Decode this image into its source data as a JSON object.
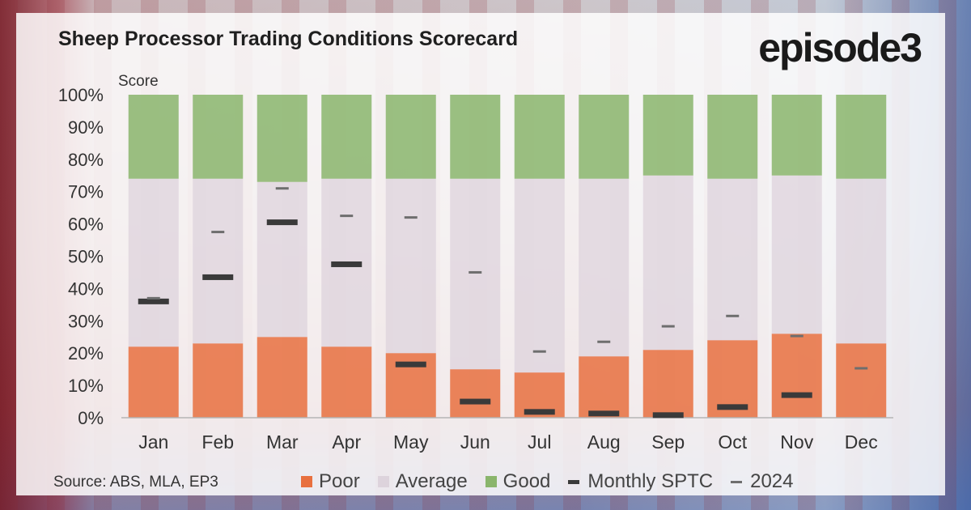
{
  "header": {
    "title": "Sheep Processor Trading Conditions Scorecard",
    "logo_text": "episode3"
  },
  "footer": {
    "source": "Source: ABS, MLA, EP3"
  },
  "colors": {
    "poor": "#e8703f",
    "average": "#ddd3dc",
    "good": "#8ab56c",
    "monthly": "#3a3a3a",
    "prior_year": "#6e6e6e"
  },
  "chart_data": {
    "type": "bar",
    "ylabel": "Score",
    "ylim": [
      0,
      100
    ],
    "yticks": [
      "0%",
      "10%",
      "20%",
      "30%",
      "40%",
      "50%",
      "60%",
      "70%",
      "80%",
      "90%",
      "100%"
    ],
    "categories": [
      "Jan",
      "Feb",
      "Mar",
      "Apr",
      "May",
      "Jun",
      "Jul",
      "Aug",
      "Sep",
      "Oct",
      "Nov",
      "Dec"
    ],
    "stacked_series": [
      {
        "name": "Poor",
        "values": [
          22,
          23,
          25,
          22,
          20,
          15,
          14,
          19,
          21,
          24,
          26,
          23
        ]
      },
      {
        "name": "Average",
        "values": [
          52,
          51,
          48,
          52,
          54,
          59,
          60,
          55,
          54,
          50,
          49,
          51
        ]
      },
      {
        "name": "Good",
        "values": [
          26,
          26,
          27,
          26,
          26,
          26,
          26,
          26,
          25,
          26,
          25,
          26
        ]
      }
    ],
    "marker_series": [
      {
        "name": "Monthly SPTC",
        "values": [
          36,
          43.5,
          60.5,
          47.5,
          16.5,
          5,
          1.8,
          1.3,
          0.8,
          3.3,
          7,
          null
        ]
      },
      {
        "name": "2024",
        "values": [
          37,
          57.5,
          71,
          62.5,
          62,
          45,
          20.5,
          23.5,
          28.3,
          31.5,
          25.3,
          15.3
        ]
      }
    ],
    "legend": [
      "Poor",
      "Average",
      "Good",
      "Monthly SPTC",
      "2024"
    ],
    "legend_position": "bottom"
  }
}
